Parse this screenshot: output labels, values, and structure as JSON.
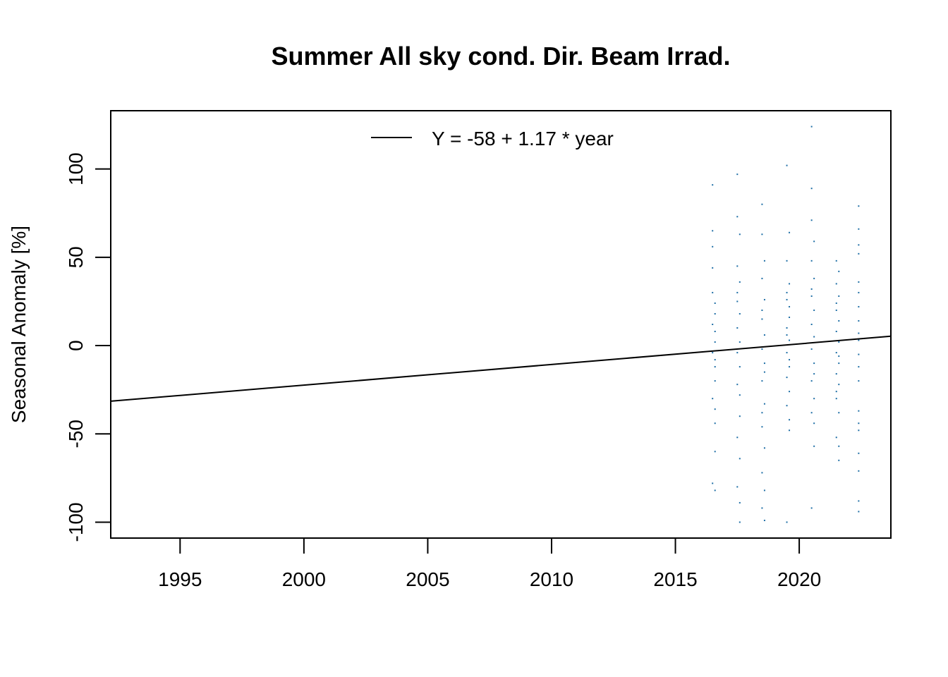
{
  "chart_data": {
    "type": "scatter",
    "title": "Summer All sky cond. Dir. Beam Irrad.",
    "xlabel": "",
    "ylabel": "Seasonal Anomaly [%]",
    "xlim": [
      1992.2,
      2023.7
    ],
    "ylim": [
      -109,
      133
    ],
    "x_ticks": [
      1995,
      2000,
      2005,
      2010,
      2015,
      2020
    ],
    "x_tick_labels": [
      "1995",
      "2000",
      "2005",
      "2010",
      "2015",
      "2020"
    ],
    "y_ticks": [
      -100,
      -50,
      0,
      50,
      100
    ],
    "y_tick_labels": [
      "-100",
      "-50",
      "0",
      "50",
      "100"
    ],
    "grid": false,
    "legend": {
      "position": "top",
      "entries": [
        "Y = -58 + 1.17 * year"
      ]
    },
    "point_color": "#1f6fa6",
    "trend_line": {
      "label": "Y = -58 + 1.17 * year",
      "x": [
        1992.2,
        2023.7
      ],
      "y": [
        -31.5,
        5.3
      ],
      "color": "#000000"
    },
    "series": [
      {
        "values": [
          [
            2016.5,
            91
          ],
          [
            2016.5,
            65
          ],
          [
            2016.5,
            56
          ],
          [
            2016.5,
            44
          ],
          [
            2016.5,
            30
          ],
          [
            2016.6,
            18
          ],
          [
            2016.6,
            8
          ],
          [
            2016.6,
            2
          ],
          [
            2016.5,
            -4
          ],
          [
            2016.6,
            -12
          ],
          [
            2016.6,
            -20
          ],
          [
            2016.5,
            -30
          ],
          [
            2016.6,
            -44
          ],
          [
            2016.6,
            -60
          ],
          [
            2016.5,
            -78
          ],
          [
            2016.6,
            -82
          ],
          [
            2016.6,
            24
          ],
          [
            2016.5,
            12
          ],
          [
            2016.6,
            -8
          ],
          [
            2016.6,
            -36
          ],
          [
            2017.5,
            97
          ],
          [
            2017.5,
            73
          ],
          [
            2017.6,
            63
          ],
          [
            2017.5,
            45
          ],
          [
            2017.6,
            36
          ],
          [
            2017.5,
            25
          ],
          [
            2017.6,
            18
          ],
          [
            2017.5,
            10
          ],
          [
            2017.6,
            2
          ],
          [
            2017.5,
            -4
          ],
          [
            2017.6,
            -12
          ],
          [
            2017.5,
            -22
          ],
          [
            2017.6,
            -40
          ],
          [
            2017.5,
            -52
          ],
          [
            2017.6,
            -64
          ],
          [
            2017.5,
            -80
          ],
          [
            2017.6,
            -100
          ],
          [
            2017.5,
            30
          ],
          [
            2017.6,
            -28
          ],
          [
            2017.6,
            -89
          ],
          [
            2018.5,
            80
          ],
          [
            2018.5,
            63
          ],
          [
            2018.6,
            48
          ],
          [
            2018.5,
            38
          ],
          [
            2018.6,
            26
          ],
          [
            2018.5,
            15
          ],
          [
            2018.6,
            6
          ],
          [
            2018.5,
            -2
          ],
          [
            2018.6,
            -10
          ],
          [
            2018.5,
            -20
          ],
          [
            2018.6,
            -33
          ],
          [
            2018.5,
            -46
          ],
          [
            2018.6,
            -58
          ],
          [
            2018.5,
            -72
          ],
          [
            2018.6,
            -82
          ],
          [
            2018.5,
            -92
          ],
          [
            2018.6,
            -99
          ],
          [
            2018.5,
            20
          ],
          [
            2018.6,
            -15
          ],
          [
            2018.5,
            -38
          ],
          [
            2019.5,
            102
          ],
          [
            2019.6,
            64
          ],
          [
            2019.5,
            48
          ],
          [
            2019.6,
            35
          ],
          [
            2019.5,
            26
          ],
          [
            2019.6,
            16
          ],
          [
            2019.5,
            10
          ],
          [
            2019.6,
            3
          ],
          [
            2019.5,
            -4
          ],
          [
            2019.6,
            -12
          ],
          [
            2019.5,
            -18
          ],
          [
            2019.6,
            -26
          ],
          [
            2019.5,
            -34
          ],
          [
            2019.6,
            -42
          ],
          [
            2019.5,
            -100
          ],
          [
            2019.5,
            30
          ],
          [
            2019.6,
            22
          ],
          [
            2019.5,
            6
          ],
          [
            2019.6,
            -8
          ],
          [
            2019.6,
            -48
          ],
          [
            2020.5,
            124
          ],
          [
            2020.5,
            89
          ],
          [
            2020.5,
            71
          ],
          [
            2020.6,
            59
          ],
          [
            2020.5,
            48
          ],
          [
            2020.6,
            38
          ],
          [
            2020.5,
            28
          ],
          [
            2020.6,
            20
          ],
          [
            2020.5,
            12
          ],
          [
            2020.6,
            5
          ],
          [
            2020.5,
            -2
          ],
          [
            2020.6,
            -10
          ],
          [
            2020.5,
            -20
          ],
          [
            2020.6,
            -30
          ],
          [
            2020.5,
            -38
          ],
          [
            2020.6,
            -57
          ],
          [
            2020.5,
            -92
          ],
          [
            2020.5,
            32
          ],
          [
            2020.6,
            -16
          ],
          [
            2020.6,
            -44
          ],
          [
            2021.5,
            48
          ],
          [
            2021.6,
            42
          ],
          [
            2021.5,
            35
          ],
          [
            2021.6,
            28
          ],
          [
            2021.5,
            20
          ],
          [
            2021.6,
            14
          ],
          [
            2021.5,
            8
          ],
          [
            2021.6,
            2
          ],
          [
            2021.5,
            -4
          ],
          [
            2021.6,
            -10
          ],
          [
            2021.5,
            -16
          ],
          [
            2021.6,
            -22
          ],
          [
            2021.5,
            -30
          ],
          [
            2021.6,
            -38
          ],
          [
            2021.5,
            -52
          ],
          [
            2021.6,
            -57
          ],
          [
            2021.6,
            -65
          ],
          [
            2021.5,
            24
          ],
          [
            2021.6,
            -6
          ],
          [
            2021.5,
            -26
          ],
          [
            2022.4,
            79
          ],
          [
            2022.4,
            66
          ],
          [
            2022.4,
            57
          ],
          [
            2022.4,
            52
          ],
          [
            2022.4,
            36
          ],
          [
            2022.4,
            30
          ],
          [
            2022.4,
            22
          ],
          [
            2022.4,
            14
          ],
          [
            2022.4,
            7
          ],
          [
            2022.4,
            3
          ],
          [
            2022.4,
            -5
          ],
          [
            2022.4,
            -12
          ],
          [
            2022.4,
            -20
          ],
          [
            2022.4,
            -37
          ],
          [
            2022.4,
            -48
          ],
          [
            2022.4,
            -61
          ],
          [
            2022.4,
            -71
          ],
          [
            2022.4,
            -88
          ],
          [
            2022.4,
            -94
          ],
          [
            2022.4,
            -44
          ]
        ]
      }
    ]
  }
}
